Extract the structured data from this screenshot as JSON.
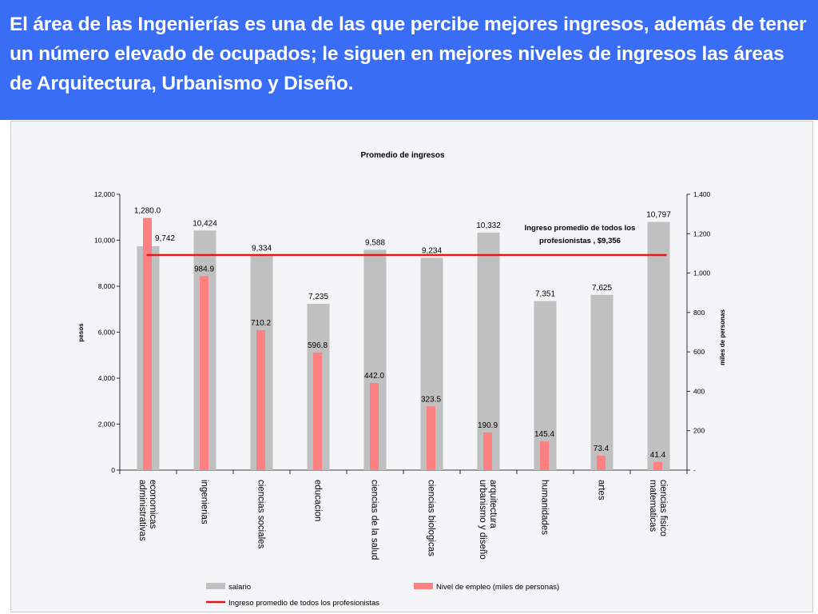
{
  "header": {
    "title": "El área de las Ingenierías es una de las que percibe mejores ingresos, además de tener un número elevado de ocupados; le siguen en mejores niveles de ingresos las áreas de Arquitectura, Urbanismo y Diseño."
  },
  "chart_data": {
    "type": "bar",
    "title": "Promedio de ingresos",
    "ylabel": "pesos",
    "y2label": "miles de personas",
    "ylim": [
      0,
      12000
    ],
    "y2lim": [
      0,
      1400
    ],
    "yticks": [
      "0",
      "2,000",
      "4,000",
      "6,000",
      "8,000",
      "10,000",
      "12,000"
    ],
    "y2ticks": [
      "-",
      "200",
      "400",
      "600",
      "800",
      "1,000",
      "1,200",
      "1,400"
    ],
    "categories": [
      [
        "economicas",
        "administrativas"
      ],
      [
        "ingenierias"
      ],
      [
        "ciencias sociales"
      ],
      [
        "educacion"
      ],
      [
        "ciencias de la salud"
      ],
      [
        "ciencias biologicas"
      ],
      [
        "arquitectura",
        "urbanismo y diseño"
      ],
      [
        "humanidades"
      ],
      [
        "artes"
      ],
      [
        "ciencias fisico",
        "matematicas"
      ]
    ],
    "series": [
      {
        "name": "salario",
        "axis": "left",
        "color": "#c0c0c0",
        "values": [
          9742,
          10424,
          9334,
          7235,
          9588,
          9234,
          10332,
          7351,
          7625,
          10797
        ],
        "labels": [
          "9,742",
          "10,424",
          "9,334",
          "7,235",
          "9,588",
          "9,234",
          "10,332",
          "7,351",
          "7,625",
          "10,797"
        ]
      },
      {
        "name": "Nivel de empleo (miles de personas)",
        "axis": "right",
        "color": "#ff8080",
        "values": [
          1280.0,
          984.9,
          710.2,
          596.8,
          442.0,
          323.5,
          190.9,
          145.4,
          73.4,
          41.4
        ],
        "labels": [
          "1,280.0",
          "984.9",
          "710.2",
          "596.8",
          "442.0",
          "323.5",
          "190.9",
          "145.4",
          "73.4",
          "41.4"
        ]
      },
      {
        "name": "Ingreso promedio de todos los profesionistas",
        "axis": "left",
        "type": "line",
        "color": "#e8161b",
        "value": 9356
      }
    ],
    "annotation": [
      "Ingreso promedio de todos los",
      "profesionistas , $9,356"
    ],
    "legend_position": "bottom",
    "grid": false
  }
}
